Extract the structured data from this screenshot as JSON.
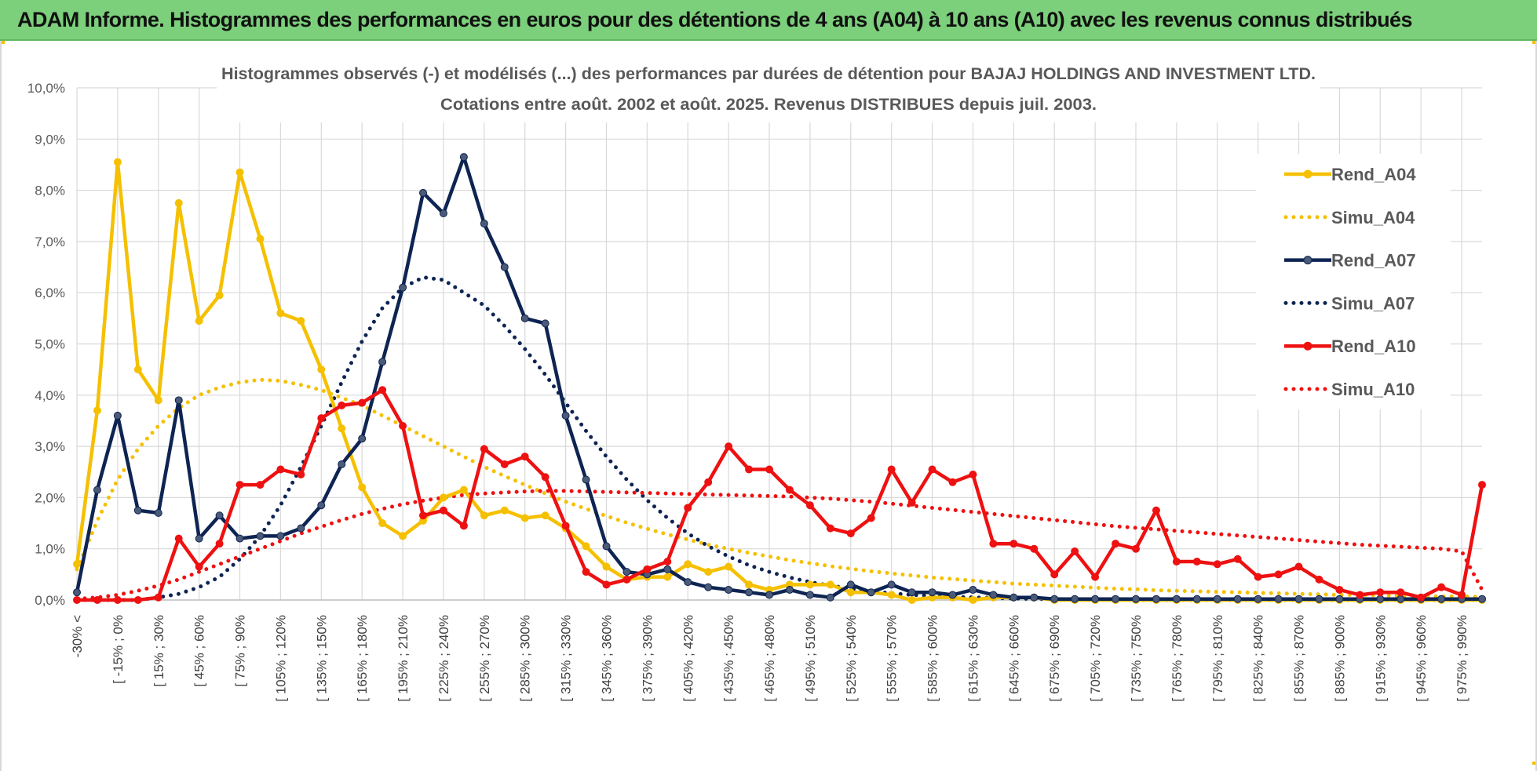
{
  "header": {
    "title": "ADAM Informe. Histogrammes des performances en euros pour des détentions de 4 ans (A04) à 10 ans (A10) avec les revenus connus distribués"
  },
  "colors": {
    "banner": "#7ccf7b",
    "a04": "#f5c000",
    "a07": "#0e2452",
    "a07_marker": "#4a5a78",
    "a10": "#ee1111",
    "grid": "#d9d9d9"
  },
  "chart_data": {
    "type": "line",
    "title_line1": "Histogrammes observés (-) et modélisés (...) des performances par durées de détention pour BAJAJ HOLDINGS AND INVESTMENT LTD.",
    "title_line2": "Cotations entre août. 2002 et août. 2025. Revenus DISTRIBUES depuis juil. 2003.",
    "ylim": [
      0,
      10
    ],
    "yticks": [
      "0,0%",
      "1,0%",
      "2,0%",
      "3,0%",
      "4,0%",
      "5,0%",
      "6,0%",
      "7,0%",
      "8,0%",
      "9,0%",
      "10,0%"
    ],
    "grid": true,
    "legend_position": "right",
    "x_labels": [
      "-30% <",
      "[ -15% ; 0%",
      "[ 15% ; 30%",
      "[ 45% ; 60%",
      "[ 75% ; 90%",
      "[ 105% ; 120%",
      "[ 135% ; 150%",
      "[ 165% ; 180%",
      "[ 195% ; 210%",
      "[ 225% ; 240%",
      "[ 255% ; 270%",
      "[ 285% ; 300%",
      "[ 315% ; 330%",
      "[ 345% ; 360%",
      "[ 375% ; 390%",
      "[ 405% ; 420%",
      "[ 435% ; 450%",
      "[ 465% ; 480%",
      "[ 495% ; 510%",
      "[ 525% ; 540%",
      "[ 555% ; 570%",
      "[ 585% ; 600%",
      "[ 615% ; 630%",
      "[ 645% ; 660%",
      "[ 675% ; 690%",
      "[ 705% ; 720%",
      "[ 735% ; 750%",
      "[ 765% ; 780%",
      "[ 795% ; 810%",
      "[ 825% ; 840%",
      "[ 855% ; 870%",
      "[ 885% ; 900%",
      "[ 915% ; 930%",
      "[ 945% ; 960%",
      "[ 975% ; 990%"
    ],
    "series": [
      {
        "name": "Rend_A04",
        "style": "solid",
        "color": "#f5c000",
        "values": [
          0.7,
          3.7,
          8.55,
          4.5,
          3.9,
          7.75,
          5.45,
          5.95,
          8.35,
          7.05,
          5.6,
          5.45,
          4.5,
          3.35,
          2.2,
          1.5,
          1.25,
          1.55,
          2.0,
          2.15,
          1.65,
          1.75,
          1.6,
          1.65,
          1.4,
          1.05,
          0.65,
          0.4,
          0.45,
          0.45,
          0.7,
          0.55,
          0.65,
          0.3,
          0.2,
          0.3,
          0.3,
          0.3,
          0.15,
          0.15,
          0.1,
          0.0,
          0.05,
          0.05,
          0.0,
          0.05,
          0.05,
          0.05,
          0.0,
          0.0,
          0.0,
          0.0,
          0.0,
          0.0,
          0.0,
          0.0,
          0.0,
          0.0,
          0.0,
          0.0,
          0.0,
          0.0,
          0.0,
          0.0,
          0.0,
          0.0,
          0.0,
          0.0,
          0.0,
          0.0
        ]
      },
      {
        "name": "Simu_A04",
        "style": "dotted",
        "color": "#f5c000",
        "values": [
          0.6,
          1.55,
          2.35,
          2.95,
          3.4,
          3.75,
          4.0,
          4.15,
          4.25,
          4.3,
          4.28,
          4.2,
          4.1,
          3.95,
          3.8,
          3.6,
          3.4,
          3.2,
          3.0,
          2.8,
          2.6,
          2.42,
          2.25,
          2.08,
          1.92,
          1.78,
          1.64,
          1.51,
          1.39,
          1.28,
          1.18,
          1.08,
          1.0,
          0.92,
          0.85,
          0.78,
          0.72,
          0.66,
          0.61,
          0.56,
          0.52,
          0.48,
          0.44,
          0.41,
          0.38,
          0.35,
          0.32,
          0.3,
          0.28,
          0.26,
          0.24,
          0.22,
          0.21,
          0.19,
          0.18,
          0.17,
          0.16,
          0.15,
          0.14,
          0.13,
          0.12,
          0.11,
          0.1,
          0.1,
          0.09,
          0.08,
          0.08,
          0.07,
          0.07,
          0.06
        ]
      },
      {
        "name": "Rend_A07",
        "style": "solid",
        "color": "#0e2452",
        "values": [
          0.15,
          2.15,
          3.6,
          1.75,
          1.7,
          3.9,
          1.2,
          1.65,
          1.2,
          1.25,
          1.25,
          1.4,
          1.85,
          2.65,
          3.15,
          4.65,
          6.1,
          7.95,
          7.55,
          8.65,
          7.35,
          6.5,
          5.5,
          5.4,
          3.6,
          2.35,
          1.05,
          0.55,
          0.5,
          0.6,
          0.35,
          0.25,
          0.2,
          0.15,
          0.1,
          0.2,
          0.1,
          0.05,
          0.3,
          0.15,
          0.3,
          0.15,
          0.15,
          0.1,
          0.2,
          0.1,
          0.05,
          0.05,
          0.02,
          0.02,
          0.02,
          0.02,
          0.02,
          0.02,
          0.02,
          0.02,
          0.02,
          0.02,
          0.02,
          0.02,
          0.02,
          0.02,
          0.02,
          0.02,
          0.02,
          0.02,
          0.02,
          0.02,
          0.02,
          0.02
        ]
      },
      {
        "name": "Simu_A07",
        "style": "dotted",
        "color": "#0e2452",
        "values": [
          0.0,
          0.0,
          0.0,
          0.0,
          0.05,
          0.12,
          0.25,
          0.45,
          0.8,
          1.25,
          1.85,
          2.6,
          3.4,
          4.25,
          5.05,
          5.7,
          6.1,
          6.3,
          6.25,
          6.0,
          5.75,
          5.35,
          4.9,
          4.4,
          3.85,
          3.3,
          2.8,
          2.35,
          1.95,
          1.6,
          1.3,
          1.05,
          0.85,
          0.68,
          0.55,
          0.44,
          0.35,
          0.28,
          0.22,
          0.17,
          0.13,
          0.1,
          0.08,
          0.06,
          0.05,
          0.04,
          0.03,
          0.02,
          0.02,
          0.01,
          0.01,
          0.01,
          0.0,
          0.0,
          0.0,
          0.0,
          0.0,
          0.0,
          0.0,
          0.0,
          0.0,
          0.0,
          0.0,
          0.0,
          0.0,
          0.0,
          0.0,
          0.0,
          0.0,
          0.0
        ]
      },
      {
        "name": "Rend_A10",
        "style": "solid",
        "color": "#ee1111",
        "values": [
          0.0,
          0.0,
          0.0,
          0.0,
          0.05,
          1.2,
          0.65,
          1.1,
          2.25,
          2.25,
          2.55,
          2.45,
          3.55,
          3.8,
          3.85,
          4.1,
          3.4,
          1.65,
          1.75,
          1.45,
          2.95,
          2.65,
          2.8,
          2.4,
          1.45,
          0.55,
          0.3,
          0.4,
          0.6,
          0.75,
          1.8,
          2.3,
          3.0,
          2.55,
          2.55,
          2.15,
          1.85,
          1.4,
          1.3,
          1.6,
          2.55,
          1.9,
          2.55,
          2.3,
          2.45,
          1.1,
          1.1,
          1.0,
          0.5,
          0.95,
          0.45,
          1.1,
          1.0,
          1.75,
          0.75,
          0.75,
          0.7,
          0.8,
          0.45,
          0.5,
          0.65,
          0.4,
          0.2,
          0.1,
          0.15,
          0.15,
          0.05,
          0.25,
          0.1,
          2.25
        ]
      },
      {
        "name": "Simu_A10",
        "style": "dotted",
        "color": "#ee1111",
        "values": [
          0.02,
          0.05,
          0.1,
          0.18,
          0.28,
          0.4,
          0.55,
          0.7,
          0.85,
          1.0,
          1.15,
          1.3,
          1.43,
          1.56,
          1.68,
          1.78,
          1.87,
          1.94,
          2.0,
          2.05,
          2.08,
          2.1,
          2.12,
          2.13,
          2.13,
          2.12,
          2.11,
          2.1,
          2.09,
          2.08,
          2.07,
          2.06,
          2.05,
          2.04,
          2.03,
          2.02,
          2.0,
          1.98,
          1.95,
          1.92,
          1.88,
          1.84,
          1.8,
          1.76,
          1.72,
          1.68,
          1.64,
          1.6,
          1.56,
          1.52,
          1.48,
          1.44,
          1.41,
          1.38,
          1.35,
          1.32,
          1.29,
          1.26,
          1.23,
          1.2,
          1.17,
          1.14,
          1.11,
          1.08,
          1.06,
          1.04,
          1.02,
          1.0,
          0.95,
          0.2
        ]
      }
    ]
  }
}
